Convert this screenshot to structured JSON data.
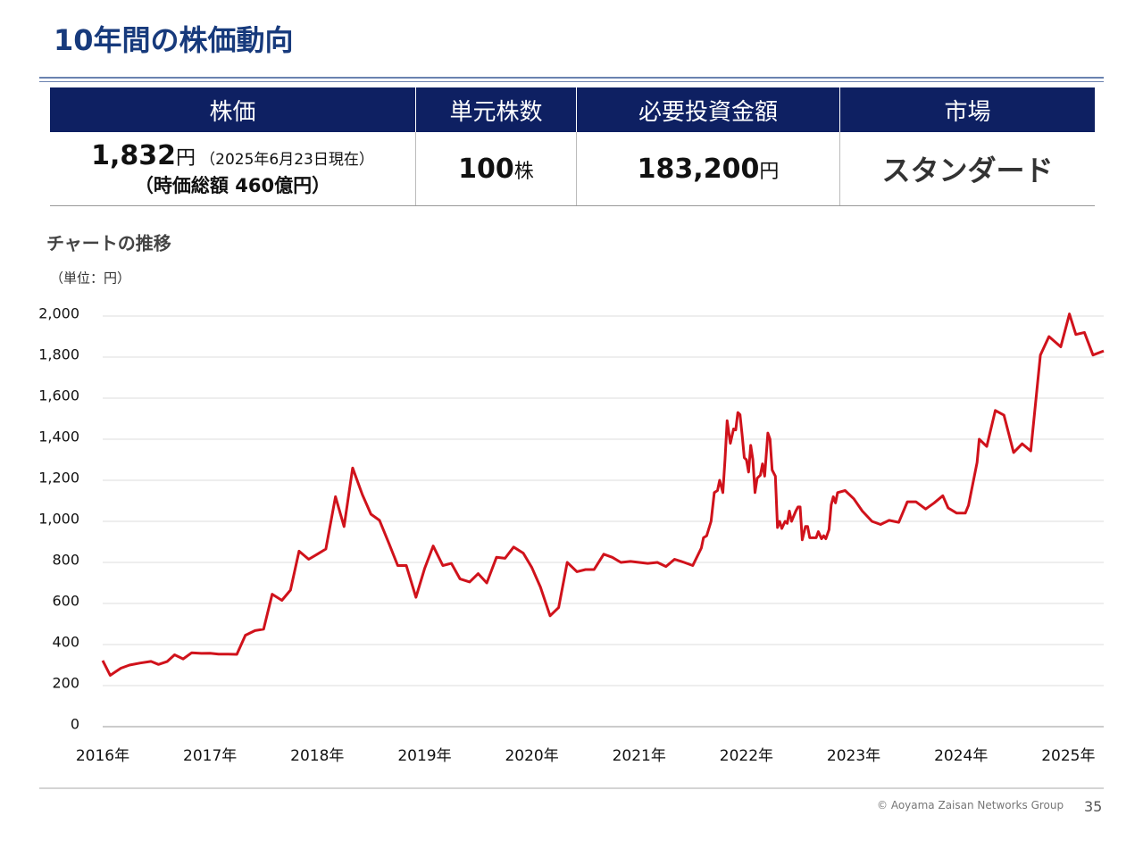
{
  "header": {
    "title": "10年間の株価動向"
  },
  "table": {
    "headers": [
      "株価",
      "単元株数",
      "必要投資金額",
      "市場"
    ],
    "price": {
      "value": "1,832",
      "unit": "円",
      "date": "（2025年6月23日現在）",
      "market_cap": "（時価総額 460億円）"
    },
    "unit_shares": {
      "value": "100",
      "unit": "株"
    },
    "investment": {
      "value": "183,200",
      "unit": "円"
    },
    "market": "スタンダード"
  },
  "chart_data": {
    "type": "line",
    "title": "チャートの推移",
    "unit_label": "（単位：円）",
    "color": "#d0121b",
    "grid": true,
    "xlim": [
      2016,
      2025.33
    ],
    "xticks": [
      {
        "value": 2016,
        "label": "2016年"
      },
      {
        "value": 2017,
        "label": "2017年"
      },
      {
        "value": 2018,
        "label": "2018年"
      },
      {
        "value": 2019,
        "label": "2019年"
      },
      {
        "value": 2020,
        "label": "2020年"
      },
      {
        "value": 2021,
        "label": "2021年"
      },
      {
        "value": 2022,
        "label": "2022年"
      },
      {
        "value": 2023,
        "label": "2023年"
      },
      {
        "value": 2024,
        "label": "2024年"
      },
      {
        "value": 2025,
        "label": "2025年"
      }
    ],
    "ylim": [
      0,
      2000
    ],
    "yticks": [
      0,
      200,
      400,
      600,
      800,
      {
        "value": 1000,
        "label": "1,000"
      },
      {
        "value": 1200,
        "label": "1,200"
      },
      {
        "value": 1400,
        "label": "1,400"
      },
      {
        "value": 1600,
        "label": "1,600"
      },
      {
        "value": 1800,
        "label": "1,800"
      },
      {
        "value": 2000,
        "label": "2,000"
      }
    ],
    "x": [
      2016.0,
      2016.07,
      2016.17,
      2016.25,
      2016.35,
      2016.45,
      2016.52,
      2016.6,
      2016.67,
      2016.75,
      2016.83,
      2016.92,
      2017.0,
      2017.08,
      2017.17,
      2017.25,
      2017.33,
      2017.42,
      2017.5,
      2017.58,
      2017.67,
      2017.75,
      2017.83,
      2017.92,
      2018.0,
      2018.08,
      2018.17,
      2018.25,
      2018.33,
      2018.42,
      2018.5,
      2018.58,
      2018.67,
      2018.75,
      2018.83,
      2018.92,
      2019.0,
      2019.08,
      2019.17,
      2019.25,
      2019.33,
      2019.42,
      2019.5,
      2019.58,
      2019.67,
      2019.75,
      2019.83,
      2019.92,
      2020.0,
      2020.08,
      2020.17,
      2020.25,
      2020.33,
      2020.42,
      2020.5,
      2020.58,
      2020.67,
      2020.75,
      2020.83,
      2020.92,
      2021.0,
      2021.08,
      2021.17,
      2021.25,
      2021.33,
      2021.42,
      2021.5,
      2021.58,
      2021.6,
      2021.63,
      2021.67,
      2021.7,
      2021.73,
      2021.75,
      2021.78,
      2021.8,
      2021.82,
      2021.85,
      2021.88,
      2021.9,
      2021.92,
      2021.94,
      2021.96,
      2021.98,
      2022.0,
      2022.02,
      2022.04,
      2022.06,
      2022.08,
      2022.1,
      2022.13,
      2022.15,
      2022.17,
      2022.2,
      2022.22,
      2022.24,
      2022.27,
      2022.29,
      2022.31,
      2022.33,
      2022.36,
      2022.38,
      2022.4,
      2022.42,
      2022.46,
      2022.48,
      2022.5,
      2022.52,
      2022.55,
      2022.57,
      2022.59,
      2022.63,
      2022.65,
      2022.67,
      2022.7,
      2022.72,
      2022.74,
      2022.77,
      2022.79,
      2022.81,
      2022.83,
      2022.85,
      2022.92,
      2023.0,
      2023.08,
      2023.17,
      2023.25,
      2023.33,
      2023.42,
      2023.5,
      2023.58,
      2023.67,
      2023.75,
      2023.83,
      2023.88,
      2023.96,
      2024.04,
      2024.07,
      2024.15,
      2024.17,
      2024.24,
      2024.32,
      2024.4,
      2024.49,
      2024.57,
      2024.65,
      2024.74,
      2024.82,
      2024.93,
      2025.01,
      2025.07,
      2025.15,
      2025.23,
      2025.33
    ],
    "values": [
      322,
      250,
      285,
      300,
      310,
      318,
      303,
      317,
      350,
      330,
      360,
      357,
      358,
      353,
      353,
      352,
      445,
      468,
      475,
      645,
      615,
      665,
      855,
      815,
      840,
      865,
      1120,
      975,
      1260,
      1130,
      1035,
      1005,
      890,
      785,
      785,
      630,
      770,
      880,
      785,
      795,
      720,
      705,
      745,
      700,
      825,
      820,
      875,
      845,
      775,
      680,
      540,
      580,
      800,
      755,
      765,
      765,
      840,
      825,
      800,
      805,
      800,
      795,
      800,
      780,
      815,
      800,
      785,
      870,
      920,
      930,
      1000,
      1140,
      1150,
      1200,
      1140,
      1300,
      1490,
      1380,
      1450,
      1445,
      1530,
      1520,
      1420,
      1310,
      1300,
      1240,
      1370,
      1300,
      1140,
      1210,
      1225,
      1280,
      1220,
      1430,
      1400,
      1250,
      1220,
      970,
      1000,
      965,
      1000,
      990,
      1050,
      1000,
      1050,
      1070,
      1070,
      910,
      975,
      975,
      920,
      920,
      920,
      950,
      915,
      930,
      915,
      960,
      1080,
      1120,
      1090,
      1140,
      1150,
      1110,
      1050,
      1000,
      985,
      1005,
      995,
      1095,
      1095,
      1060,
      1090,
      1125,
      1065,
      1040,
      1040,
      1078,
      1287,
      1400,
      1365,
      1540,
      1517,
      1335,
      1378,
      1343,
      1810,
      1900,
      1850,
      2010,
      1910,
      1920,
      1810,
      1830
    ]
  }
}
